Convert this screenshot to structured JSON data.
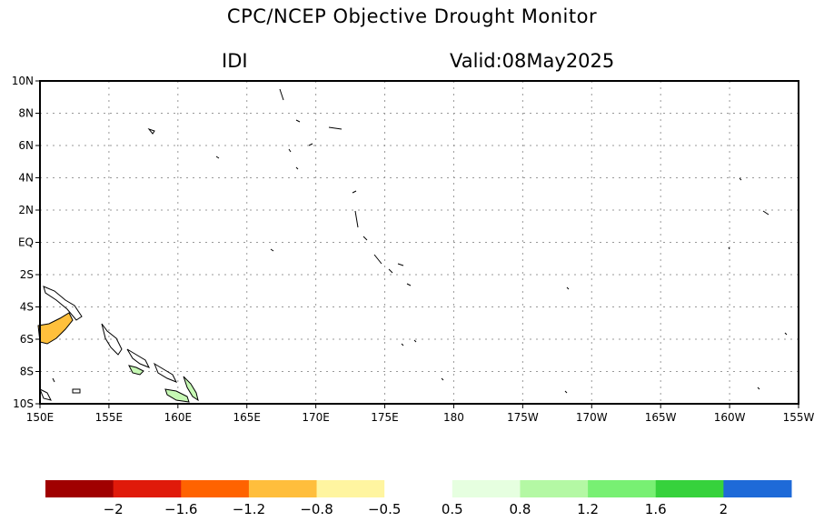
{
  "header": {
    "title": "CPC/NCEP Objective Drought Monitor",
    "index_name": "IDI",
    "valid_label": "Valid:08May2025"
  },
  "map": {
    "lon_range": [
      150,
      205
    ],
    "lat_range": [
      -10,
      10
    ],
    "lat_ticks": [
      {
        "value": 10,
        "label": "10N"
      },
      {
        "value": 8,
        "label": "8N"
      },
      {
        "value": 6,
        "label": "6N"
      },
      {
        "value": 4,
        "label": "4N"
      },
      {
        "value": 2,
        "label": "2N"
      },
      {
        "value": 0,
        "label": "EQ"
      },
      {
        "value": -2,
        "label": "2S"
      },
      {
        "value": -4,
        "label": "4S"
      },
      {
        "value": -6,
        "label": "6S"
      },
      {
        "value": -8,
        "label": "8S"
      },
      {
        "value": -10,
        "label": "10S"
      }
    ],
    "lon_ticks": [
      {
        "value": 150,
        "label": "150E"
      },
      {
        "value": 155,
        "label": "155E"
      },
      {
        "value": 160,
        "label": "160E"
      },
      {
        "value": 165,
        "label": "165E"
      },
      {
        "value": 170,
        "label": "170E"
      },
      {
        "value": 175,
        "label": "175E"
      },
      {
        "value": 180,
        "label": "180"
      },
      {
        "value": 185,
        "label": "175W"
      },
      {
        "value": 190,
        "label": "170W"
      },
      {
        "value": 195,
        "label": "165W"
      },
      {
        "value": 200,
        "label": "160W"
      },
      {
        "value": 205,
        "label": "155W"
      }
    ],
    "gridlines": true
  },
  "colorbar": {
    "colors": [
      "#a00000",
      "#e01a0a",
      "#ff6300",
      "#ffbe3c",
      "#fff5a0",
      "#ffffff",
      "#e6ffe0",
      "#b4f8a4",
      "#78f073",
      "#36d23c",
      "#1e6ad8"
    ],
    "labels": [
      "−2",
      "−1.6",
      "−1.2",
      "−0.8",
      "−0.5",
      "0.5",
      "0.8",
      "1.2",
      "1.6",
      "2"
    ]
  }
}
